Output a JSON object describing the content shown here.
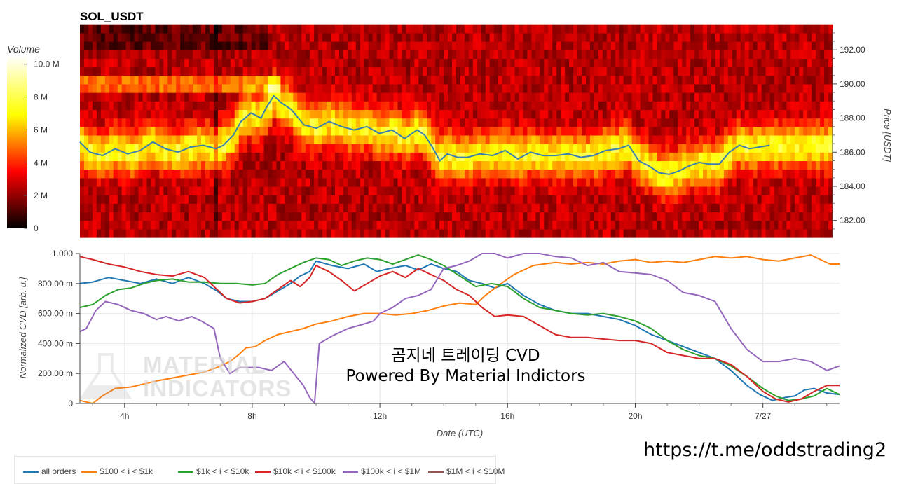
{
  "title": "SOL_USDT",
  "watermark": {
    "line1": "곰지네 트레이딩 CVD",
    "line2": "Powered By Material Indictors",
    "logo_line1": "MATERIAL",
    "logo_line2": "INDICATORS"
  },
  "url": "https://t.me/oddstrading2",
  "colorbar": {
    "title": "Volume",
    "ticks": [
      "10.0 M",
      "8 M",
      "6 M",
      "4 M",
      "2 M",
      "0"
    ],
    "tick_values": [
      10,
      8,
      6,
      4,
      2,
      0
    ],
    "max": 10.5
  },
  "chart_data": [
    {
      "type": "heatmap",
      "title": "SOL_USDT",
      "ylabel": "Price [USDT]",
      "yticks": [
        "192.00",
        "190.00",
        "188.00",
        "186.00",
        "184.00",
        "182.00"
      ],
      "ytick_values": [
        192,
        190,
        188,
        186,
        184,
        182
      ],
      "ylim": [
        181,
        193.2
      ],
      "xlim": [
        2.6,
        32.5
      ],
      "colorscale": "hot",
      "price_series": {
        "x": [
          2.6,
          3.0,
          3.5,
          4.0,
          4.5,
          5.0,
          5.5,
          6.0,
          6.5,
          7.0,
          7.5,
          8.0,
          8.3,
          8.7,
          9.0,
          9.4,
          9.8,
          10.0,
          10.3,
          10.6,
          11.0,
          11.5,
          12.0,
          12.5,
          13.0,
          13.5,
          14.0,
          14.5,
          15.0,
          15.5,
          16.0,
          16.3,
          16.6,
          16.9,
          17.2,
          17.6,
          18.0,
          18.5,
          19.0,
          19.5,
          20.0,
          20.5,
          21.0,
          21.5,
          22.0,
          22.5,
          23.0,
          23.5,
          24.0,
          24.4,
          24.8,
          25.2,
          25.6,
          26.0,
          26.4,
          26.8,
          27.2,
          27.6,
          28.0,
          28.4,
          28.8,
          29.2,
          29.6,
          30.0
        ],
        "y": [
          186.6,
          186.0,
          185.8,
          186.2,
          185.9,
          186.1,
          186.6,
          186.2,
          186.0,
          186.3,
          186.4,
          186.2,
          186.4,
          187.0,
          187.8,
          188.3,
          188.0,
          188.6,
          189.3,
          188.9,
          188.5,
          187.6,
          187.4,
          187.8,
          187.5,
          187.3,
          187.5,
          187.1,
          187.3,
          186.8,
          187.3,
          187.0,
          186.3,
          185.5,
          185.9,
          185.7,
          185.7,
          185.9,
          185.8,
          186.1,
          185.6,
          186.0,
          185.8,
          185.8,
          185.9,
          185.7,
          185.8,
          186.1,
          186.2,
          186.4,
          185.5,
          185.2,
          184.8,
          184.7,
          184.9,
          185.2,
          185.4,
          185.3,
          185.3,
          186.0,
          186.4,
          186.2,
          186.3,
          186.4
        ],
        "color": "#3b7fb0"
      }
    },
    {
      "type": "line",
      "xlabel": "Date (UTC)",
      "ylabel": "Normalized CVD [arb. u.]",
      "xticks": [
        "4h",
        "8h",
        "12h",
        "16h",
        "20h",
        "7/27"
      ],
      "xtick_values": [
        4,
        8,
        12,
        16,
        20,
        24
      ],
      "yticks": [
        "1.000",
        "800.00 m",
        "600.00 m",
        "400.00 m",
        "200.00 m",
        "0"
      ],
      "ytick_values": [
        1.0,
        0.8,
        0.6,
        0.4,
        0.2,
        0
      ],
      "xlim": [
        2.6,
        26.4
      ],
      "ylim": [
        0,
        1.0
      ],
      "grid": true,
      "series": [
        {
          "name": "all orders",
          "color": "#1f77b4",
          "x": [
            2.6,
            3.0,
            3.5,
            4.0,
            4.5,
            5.0,
            5.5,
            6.0,
            6.5,
            6.9,
            7.2,
            7.6,
            8.0,
            8.4,
            8.8,
            9.2,
            9.5,
            9.8,
            10.0,
            10.5,
            11.0,
            11.5,
            11.9,
            12.3,
            12.8,
            13.2,
            13.6,
            14.0,
            14.4,
            14.8,
            15.2,
            15.6,
            16.0,
            16.5,
            17.0,
            17.5,
            18.0,
            18.5,
            19.0,
            19.5,
            20.0,
            20.5,
            21.0,
            21.5,
            22.0,
            22.5,
            23.0,
            23.5,
            23.9,
            24.3,
            24.7,
            25.0,
            25.3,
            25.6,
            26.0,
            26.4
          ],
          "y": [
            0.8,
            0.81,
            0.84,
            0.82,
            0.8,
            0.83,
            0.8,
            0.84,
            0.8,
            0.75,
            0.7,
            0.68,
            0.68,
            0.7,
            0.75,
            0.8,
            0.85,
            0.88,
            0.95,
            0.92,
            0.9,
            0.93,
            0.88,
            0.9,
            0.92,
            0.89,
            0.93,
            0.9,
            0.88,
            0.82,
            0.8,
            0.77,
            0.8,
            0.72,
            0.66,
            0.62,
            0.6,
            0.6,
            0.58,
            0.56,
            0.52,
            0.46,
            0.42,
            0.38,
            0.34,
            0.3,
            0.22,
            0.12,
            0.06,
            0.02,
            0.04,
            0.05,
            0.09,
            0.1,
            0.07,
            0.06
          ]
        },
        {
          "name": "$100 < i < $1k",
          "color": "#ff7f0e",
          "x": [
            2.6,
            3.0,
            3.3,
            3.7,
            4.2,
            4.6,
            5.0,
            5.5,
            6.0,
            6.5,
            6.9,
            7.3,
            7.6,
            7.8,
            8.1,
            8.4,
            8.8,
            9.2,
            9.6,
            10.0,
            10.5,
            11.0,
            11.5,
            12.0,
            12.5,
            13.0,
            13.5,
            14.0,
            14.5,
            15.0,
            15.3,
            15.8,
            16.2,
            16.8,
            17.5,
            18.0,
            18.5,
            19.0,
            19.5,
            20.0,
            20.5,
            21.0,
            21.5,
            22.0,
            22.5,
            23.0,
            23.5,
            24.0,
            24.5,
            25.0,
            25.5,
            25.8,
            26.1,
            26.4
          ],
          "y": [
            0.02,
            0.0,
            0.05,
            0.1,
            0.11,
            0.13,
            0.15,
            0.17,
            0.19,
            0.21,
            0.24,
            0.28,
            0.33,
            0.37,
            0.38,
            0.42,
            0.46,
            0.48,
            0.5,
            0.53,
            0.55,
            0.58,
            0.6,
            0.6,
            0.59,
            0.6,
            0.62,
            0.65,
            0.67,
            0.66,
            0.72,
            0.8,
            0.86,
            0.92,
            0.94,
            0.93,
            0.94,
            0.93,
            0.95,
            0.96,
            0.94,
            0.95,
            0.94,
            0.96,
            0.98,
            0.97,
            0.98,
            0.96,
            0.95,
            0.97,
            0.99,
            0.96,
            0.93,
            0.93
          ]
        },
        {
          "name": "$1k < i < $10k",
          "color": "#2ca02c",
          "x": [
            2.6,
            3.0,
            3.4,
            3.8,
            4.2,
            4.6,
            5.0,
            5.5,
            6.0,
            6.5,
            7.0,
            7.5,
            8.0,
            8.4,
            8.8,
            9.2,
            9.6,
            10.0,
            10.4,
            10.8,
            11.2,
            11.6,
            12.0,
            12.4,
            12.8,
            13.2,
            13.6,
            14.0,
            14.5,
            15.0,
            15.5,
            16.0,
            16.5,
            17.0,
            17.5,
            18.0,
            18.5,
            19.0,
            19.5,
            20.0,
            20.5,
            21.0,
            21.5,
            22.0,
            22.5,
            23.0,
            23.5,
            24.0,
            24.4,
            24.8,
            25.2,
            25.6,
            26.0,
            26.4
          ],
          "y": [
            0.64,
            0.66,
            0.72,
            0.76,
            0.77,
            0.8,
            0.82,
            0.83,
            0.81,
            0.81,
            0.8,
            0.8,
            0.79,
            0.8,
            0.86,
            0.9,
            0.94,
            0.97,
            0.96,
            0.92,
            0.95,
            0.97,
            0.96,
            0.93,
            0.96,
            0.99,
            0.96,
            0.92,
            0.85,
            0.78,
            0.8,
            0.78,
            0.7,
            0.64,
            0.62,
            0.6,
            0.59,
            0.6,
            0.58,
            0.55,
            0.5,
            0.42,
            0.36,
            0.32,
            0.3,
            0.25,
            0.18,
            0.1,
            0.05,
            0.02,
            0.03,
            0.05,
            0.1,
            0.06
          ]
        },
        {
          "name": "$10k < i < $100k",
          "color": "#d62728",
          "x": [
            2.6,
            3.0,
            3.5,
            4.0,
            4.5,
            5.0,
            5.5,
            6.0,
            6.5,
            6.8,
            7.2,
            7.6,
            8.0,
            8.4,
            8.8,
            9.2,
            9.5,
            9.8,
            10.0,
            10.4,
            10.8,
            11.2,
            11.6,
            12.0,
            12.4,
            12.8,
            13.2,
            13.6,
            14.0,
            14.4,
            14.8,
            15.2,
            15.6,
            16.0,
            16.5,
            17.0,
            17.5,
            18.0,
            18.5,
            19.0,
            19.5,
            20.0,
            20.5,
            21.0,
            21.5,
            22.0,
            22.5,
            23.0,
            23.5,
            24.0,
            24.4,
            24.8,
            25.2,
            25.6,
            26.0,
            26.4
          ],
          "y": [
            0.98,
            0.96,
            0.93,
            0.91,
            0.88,
            0.86,
            0.85,
            0.88,
            0.84,
            0.78,
            0.7,
            0.67,
            0.68,
            0.7,
            0.76,
            0.82,
            0.78,
            0.84,
            0.92,
            0.88,
            0.82,
            0.75,
            0.8,
            0.85,
            0.88,
            0.84,
            0.9,
            0.86,
            0.82,
            0.76,
            0.72,
            0.64,
            0.58,
            0.59,
            0.58,
            0.52,
            0.46,
            0.44,
            0.44,
            0.43,
            0.42,
            0.42,
            0.4,
            0.34,
            0.32,
            0.3,
            0.3,
            0.26,
            0.18,
            0.08,
            0.03,
            0.01,
            0.03,
            0.08,
            0.12,
            0.12
          ]
        },
        {
          "name": "$100k < i < $1M",
          "color": "#9467bd",
          "x": [
            2.6,
            2.8,
            3.1,
            3.4,
            3.8,
            4.2,
            4.6,
            5.0,
            5.3,
            5.7,
            6.1,
            6.4,
            6.8,
            7.0,
            7.3,
            7.6,
            7.9,
            8.2,
            8.6,
            9.0,
            9.3,
            9.6,
            9.8,
            9.95,
            10.1,
            10.5,
            11.0,
            11.5,
            11.8,
            12.0,
            12.4,
            12.8,
            13.2,
            13.6,
            14.0,
            14.4,
            14.8,
            15.2,
            15.6,
            16.0,
            16.5,
            17.0,
            17.5,
            18.0,
            18.5,
            19.0,
            19.5,
            20.0,
            20.5,
            21.0,
            21.5,
            22.0,
            22.5,
            23.0,
            23.5,
            24.0,
            24.5,
            25.0,
            25.5,
            26.0,
            26.4
          ],
          "y": [
            0.48,
            0.5,
            0.62,
            0.68,
            0.66,
            0.62,
            0.6,
            0.56,
            0.58,
            0.55,
            0.58,
            0.55,
            0.5,
            0.3,
            0.2,
            0.24,
            0.24,
            0.24,
            0.22,
            0.28,
            0.2,
            0.12,
            0.04,
            0.0,
            0.4,
            0.45,
            0.5,
            0.53,
            0.55,
            0.6,
            0.64,
            0.7,
            0.72,
            0.76,
            0.9,
            0.92,
            0.95,
            1.0,
            1.0,
            0.97,
            1.0,
            1.0,
            0.98,
            0.97,
            0.92,
            0.94,
            0.88,
            0.87,
            0.86,
            0.82,
            0.74,
            0.72,
            0.68,
            0.5,
            0.36,
            0.28,
            0.28,
            0.3,
            0.28,
            0.22,
            0.25
          ]
        },
        {
          "name": "$1M < i < $10M",
          "color": "#8c564b",
          "x": [],
          "y": []
        }
      ]
    }
  ]
}
